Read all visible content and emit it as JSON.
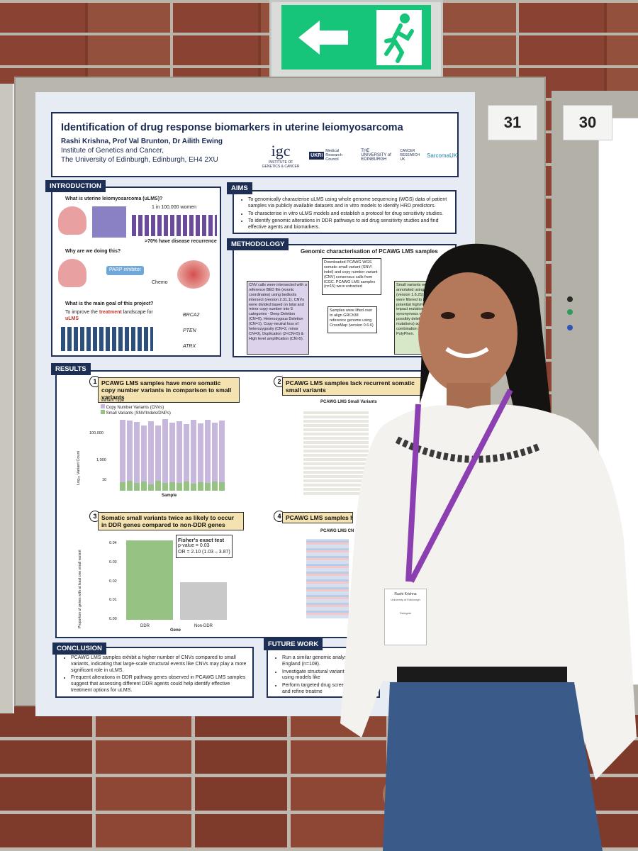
{
  "board_numbers": {
    "left": "31",
    "right": "30"
  },
  "poster": {
    "title": "Identification of drug response biomarkers in uterine leiomyosarcoma",
    "authors": "Rashi Krishna, Prof Val Brunton, Dr Ailith Ewing",
    "institute_line1": "Institute of Genetics and Cancer,",
    "institute_line2": "The University of Edinburgh, Edinburgh, EH4 2XU",
    "logos": {
      "igc": "igc",
      "igc_sub": "INSTITUTE OF GENETICS & CANCER",
      "mrc": "Medical Research Council",
      "edinburgh": "THE UNIVERSITY of EDINBURGH",
      "cruk": "CANCER RESEARCH UK",
      "sarcoma": "SarcomaUK"
    },
    "introduction": {
      "label": "INTRODUCTION",
      "q1": "What is uterine leiomyosarcoma (uLMS)?",
      "stat1": "1 in 100,000 women",
      "stat2": ">70% have disease recurrence",
      "q2": "Why are we doing this?",
      "parp": "PARP inhibitor",
      "chemo": "Chemo",
      "q3": "What is the main goal of this project?",
      "goal_a": "To improve the",
      "goal_b": "treatment",
      "goal_c": "landscape for",
      "goal_d": "uLMS",
      "genes": [
        "BRCA2",
        "PTEN",
        "ATRX"
      ]
    },
    "aims": {
      "label": "AIMS",
      "items": [
        "To genomically characterise uLMS using whole genome sequencing (WGS) data of patient samples via publicly available datasets and in vitro models to identify HRD predictors.",
        "To characterise in vitro uLMS models and establish a protocol for drug sensitivity studies.",
        "To identify genomic alterations in DDR pathways to aid drug sensitivity studies and find effective agents and biomarkers."
      ]
    },
    "methodology": {
      "label": "METHODOLOGY",
      "title": "Genomic characterisation of PCAWG LMS samples",
      "box_download": "Downloaded PCAWG WGS somatic small variant (SNV/ indel) and copy number variant (CNV) consensus calls from ICGC. PCAWG LMS samples (n=15) were extracted",
      "box_cnv": "CNV calls were intersected with a reference BED file (exonic coordinates) using bedtools intersect (version 2.31.1). CNVs were divided based on total and minor copy number into 5 categories - Deep Deletion (CN=0), Heterozygous Deletion (CN=1), Copy-neutral loss of heterozygosity (CN=2, minor CN=0), Duplication (2<CN<5) & High level amplification (CN>5).",
      "box_lift": "Samples were lifted over to align GRCh38 reference genome using CrossMap (version 0.6.6)",
      "box_small": "Small variants were re-annotated using maf2maf (version 1.6.21). Variants were filtered to include potential high/moderate impact mutations (excluding synonymous variants and possibly deleterious missense mutations) according to a combination of SIFT and PolyPhen."
    },
    "results": {
      "label": "RESULTS",
      "r1": {
        "num": "1",
        "head": "PCAWG LMS samples have more somatic copy number variants in comparison to small variants"
      },
      "r2": {
        "num": "2",
        "head": "PCAWG LMS samples lack recurrent somatic small variants",
        "plot_title": "PCAWG LMS Small Variants"
      },
      "r3": {
        "num": "3",
        "head": "Somatic small variants twice as likely to occur in DDR genes compared to non-DDR genes",
        "test_title": "Fisher's exact test",
        "p_value": "p-value = 0.03",
        "or": "OR = 2.10 (1.03 – 3.87)"
      },
      "r4": {
        "num": "4",
        "head": "PCAWG LMS samples have number variants in D",
        "plot_title": "PCAWG LMS CN"
      }
    },
    "conclusion": {
      "label": "CONCLUSION",
      "items": [
        "PCAWG LMS samples exhibit a higher number of CNVs compared to small variants, indicating that large-scale structural events like CNVs may play a more significant role in uLMS.",
        "Frequent alterations in DDR pathway genes observed in PCAWG LMS samples suggest that assessing different DDR agents could help identify effective treatment options for uLMS."
      ]
    },
    "future_work": {
      "label": "FUTURE WORK",
      "items": [
        "Run a similar genomic analys Genomics England (n=108).",
        "Investigate structural variant HRD scores using models like",
        "Perform targeted drug scree biomarkers and refine treatme"
      ]
    }
  },
  "chart_data": [
    {
      "type": "bar",
      "title": "",
      "legend_title": "Variant Type",
      "legend_placement": "top-left",
      "series": [
        {
          "name": "Copy Number Variants (CNVs)",
          "color": "#c7b7dc",
          "values": [
            1500000,
            1300000,
            1000000,
            600000,
            1100000,
            550000,
            1600000,
            900000,
            1200000,
            700000,
            1400000,
            800000,
            1550000,
            950000,
            1300000
          ]
        },
        {
          "name": "Small Variants (SNV/Indels/DNPs)",
          "color": "#96c383",
          "values": [
            40,
            55,
            35,
            45,
            30,
            50,
            38,
            42,
            36,
            48,
            33,
            44,
            39,
            46,
            41
          ]
        }
      ],
      "xlabel": "Sample",
      "ylabel": "Log₁₀ Variant Count",
      "yticks": [
        "10",
        "1,000",
        "100,000"
      ],
      "yscale": "log"
    },
    {
      "type": "bar",
      "categories": [
        "DDR",
        "Non-DDR"
      ],
      "values": [
        0.042,
        0.02
      ],
      "color": [
        "#96c383",
        "#c9c9c9"
      ],
      "xlabel": "Gene",
      "ylabel": "Proportion of genes with at least one small variant",
      "yticks": [
        "0.00",
        "0.01",
        "0.02",
        "0.03",
        "0.04"
      ],
      "ylim": [
        0,
        0.045
      ]
    }
  ],
  "badge": {
    "name": "Rashi Krishna",
    "org": "University of Edinburgh",
    "role": "Delegate"
  }
}
